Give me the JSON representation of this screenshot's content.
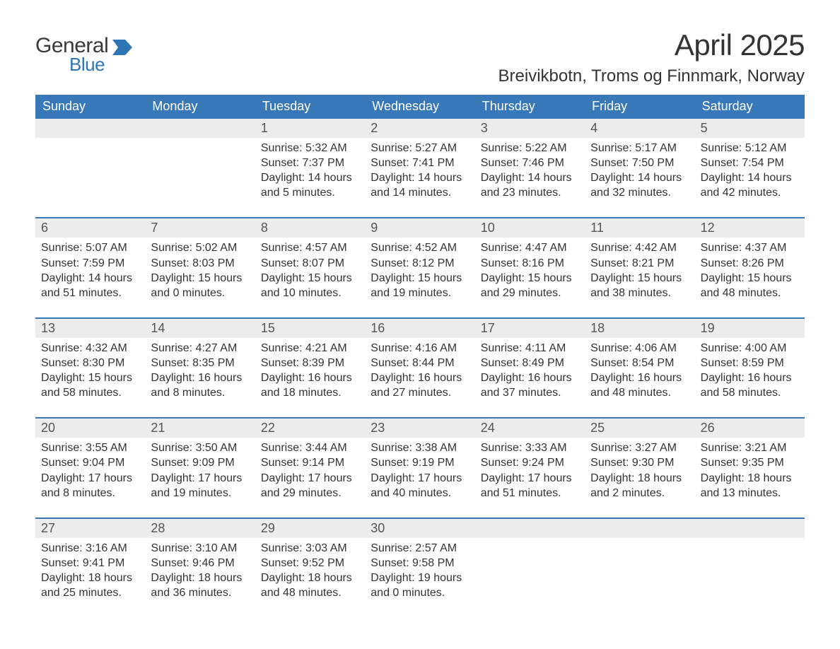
{
  "brand": {
    "general": "General",
    "blue": "Blue",
    "flag_color": "#2e75b6"
  },
  "title": "April 2025",
  "location": "Breivikbotn, Troms og Finnmark, Norway",
  "colors": {
    "header_bg": "#3878b8",
    "daynum_bg": "#ececec",
    "text": "#333333",
    "week_border": "#3878b8"
  },
  "weekdays": [
    "Sunday",
    "Monday",
    "Tuesday",
    "Wednesday",
    "Thursday",
    "Friday",
    "Saturday"
  ],
  "weeks": [
    [
      {
        "day": "",
        "sunrise": "",
        "sunset": "",
        "daylight": ""
      },
      {
        "day": "",
        "sunrise": "",
        "sunset": "",
        "daylight": ""
      },
      {
        "day": "1",
        "sunrise": "Sunrise: 5:32 AM",
        "sunset": "Sunset: 7:37 PM",
        "daylight": "Daylight: 14 hours and 5 minutes."
      },
      {
        "day": "2",
        "sunrise": "Sunrise: 5:27 AM",
        "sunset": "Sunset: 7:41 PM",
        "daylight": "Daylight: 14 hours and 14 minutes."
      },
      {
        "day": "3",
        "sunrise": "Sunrise: 5:22 AM",
        "sunset": "Sunset: 7:46 PM",
        "daylight": "Daylight: 14 hours and 23 minutes."
      },
      {
        "day": "4",
        "sunrise": "Sunrise: 5:17 AM",
        "sunset": "Sunset: 7:50 PM",
        "daylight": "Daylight: 14 hours and 32 minutes."
      },
      {
        "day": "5",
        "sunrise": "Sunrise: 5:12 AM",
        "sunset": "Sunset: 7:54 PM",
        "daylight": "Daylight: 14 hours and 42 minutes."
      }
    ],
    [
      {
        "day": "6",
        "sunrise": "Sunrise: 5:07 AM",
        "sunset": "Sunset: 7:59 PM",
        "daylight": "Daylight: 14 hours and 51 minutes."
      },
      {
        "day": "7",
        "sunrise": "Sunrise: 5:02 AM",
        "sunset": "Sunset: 8:03 PM",
        "daylight": "Daylight: 15 hours and 0 minutes."
      },
      {
        "day": "8",
        "sunrise": "Sunrise: 4:57 AM",
        "sunset": "Sunset: 8:07 PM",
        "daylight": "Daylight: 15 hours and 10 minutes."
      },
      {
        "day": "9",
        "sunrise": "Sunrise: 4:52 AM",
        "sunset": "Sunset: 8:12 PM",
        "daylight": "Daylight: 15 hours and 19 minutes."
      },
      {
        "day": "10",
        "sunrise": "Sunrise: 4:47 AM",
        "sunset": "Sunset: 8:16 PM",
        "daylight": "Daylight: 15 hours and 29 minutes."
      },
      {
        "day": "11",
        "sunrise": "Sunrise: 4:42 AM",
        "sunset": "Sunset: 8:21 PM",
        "daylight": "Daylight: 15 hours and 38 minutes."
      },
      {
        "day": "12",
        "sunrise": "Sunrise: 4:37 AM",
        "sunset": "Sunset: 8:26 PM",
        "daylight": "Daylight: 15 hours and 48 minutes."
      }
    ],
    [
      {
        "day": "13",
        "sunrise": "Sunrise: 4:32 AM",
        "sunset": "Sunset: 8:30 PM",
        "daylight": "Daylight: 15 hours and 58 minutes."
      },
      {
        "day": "14",
        "sunrise": "Sunrise: 4:27 AM",
        "sunset": "Sunset: 8:35 PM",
        "daylight": "Daylight: 16 hours and 8 minutes."
      },
      {
        "day": "15",
        "sunrise": "Sunrise: 4:21 AM",
        "sunset": "Sunset: 8:39 PM",
        "daylight": "Daylight: 16 hours and 18 minutes."
      },
      {
        "day": "16",
        "sunrise": "Sunrise: 4:16 AM",
        "sunset": "Sunset: 8:44 PM",
        "daylight": "Daylight: 16 hours and 27 minutes."
      },
      {
        "day": "17",
        "sunrise": "Sunrise: 4:11 AM",
        "sunset": "Sunset: 8:49 PM",
        "daylight": "Daylight: 16 hours and 37 minutes."
      },
      {
        "day": "18",
        "sunrise": "Sunrise: 4:06 AM",
        "sunset": "Sunset: 8:54 PM",
        "daylight": "Daylight: 16 hours and 48 minutes."
      },
      {
        "day": "19",
        "sunrise": "Sunrise: 4:00 AM",
        "sunset": "Sunset: 8:59 PM",
        "daylight": "Daylight: 16 hours and 58 minutes."
      }
    ],
    [
      {
        "day": "20",
        "sunrise": "Sunrise: 3:55 AM",
        "sunset": "Sunset: 9:04 PM",
        "daylight": "Daylight: 17 hours and 8 minutes."
      },
      {
        "day": "21",
        "sunrise": "Sunrise: 3:50 AM",
        "sunset": "Sunset: 9:09 PM",
        "daylight": "Daylight: 17 hours and 19 minutes."
      },
      {
        "day": "22",
        "sunrise": "Sunrise: 3:44 AM",
        "sunset": "Sunset: 9:14 PM",
        "daylight": "Daylight: 17 hours and 29 minutes."
      },
      {
        "day": "23",
        "sunrise": "Sunrise: 3:38 AM",
        "sunset": "Sunset: 9:19 PM",
        "daylight": "Daylight: 17 hours and 40 minutes."
      },
      {
        "day": "24",
        "sunrise": "Sunrise: 3:33 AM",
        "sunset": "Sunset: 9:24 PM",
        "daylight": "Daylight: 17 hours and 51 minutes."
      },
      {
        "day": "25",
        "sunrise": "Sunrise: 3:27 AM",
        "sunset": "Sunset: 9:30 PM",
        "daylight": "Daylight: 18 hours and 2 minutes."
      },
      {
        "day": "26",
        "sunrise": "Sunrise: 3:21 AM",
        "sunset": "Sunset: 9:35 PM",
        "daylight": "Daylight: 18 hours and 13 minutes."
      }
    ],
    [
      {
        "day": "27",
        "sunrise": "Sunrise: 3:16 AM",
        "sunset": "Sunset: 9:41 PM",
        "daylight": "Daylight: 18 hours and 25 minutes."
      },
      {
        "day": "28",
        "sunrise": "Sunrise: 3:10 AM",
        "sunset": "Sunset: 9:46 PM",
        "daylight": "Daylight: 18 hours and 36 minutes."
      },
      {
        "day": "29",
        "sunrise": "Sunrise: 3:03 AM",
        "sunset": "Sunset: 9:52 PM",
        "daylight": "Daylight: 18 hours and 48 minutes."
      },
      {
        "day": "30",
        "sunrise": "Sunrise: 2:57 AM",
        "sunset": "Sunset: 9:58 PM",
        "daylight": "Daylight: 19 hours and 0 minutes."
      },
      {
        "day": "",
        "sunrise": "",
        "sunset": "",
        "daylight": ""
      },
      {
        "day": "",
        "sunrise": "",
        "sunset": "",
        "daylight": ""
      },
      {
        "day": "",
        "sunrise": "",
        "sunset": "",
        "daylight": ""
      }
    ]
  ]
}
